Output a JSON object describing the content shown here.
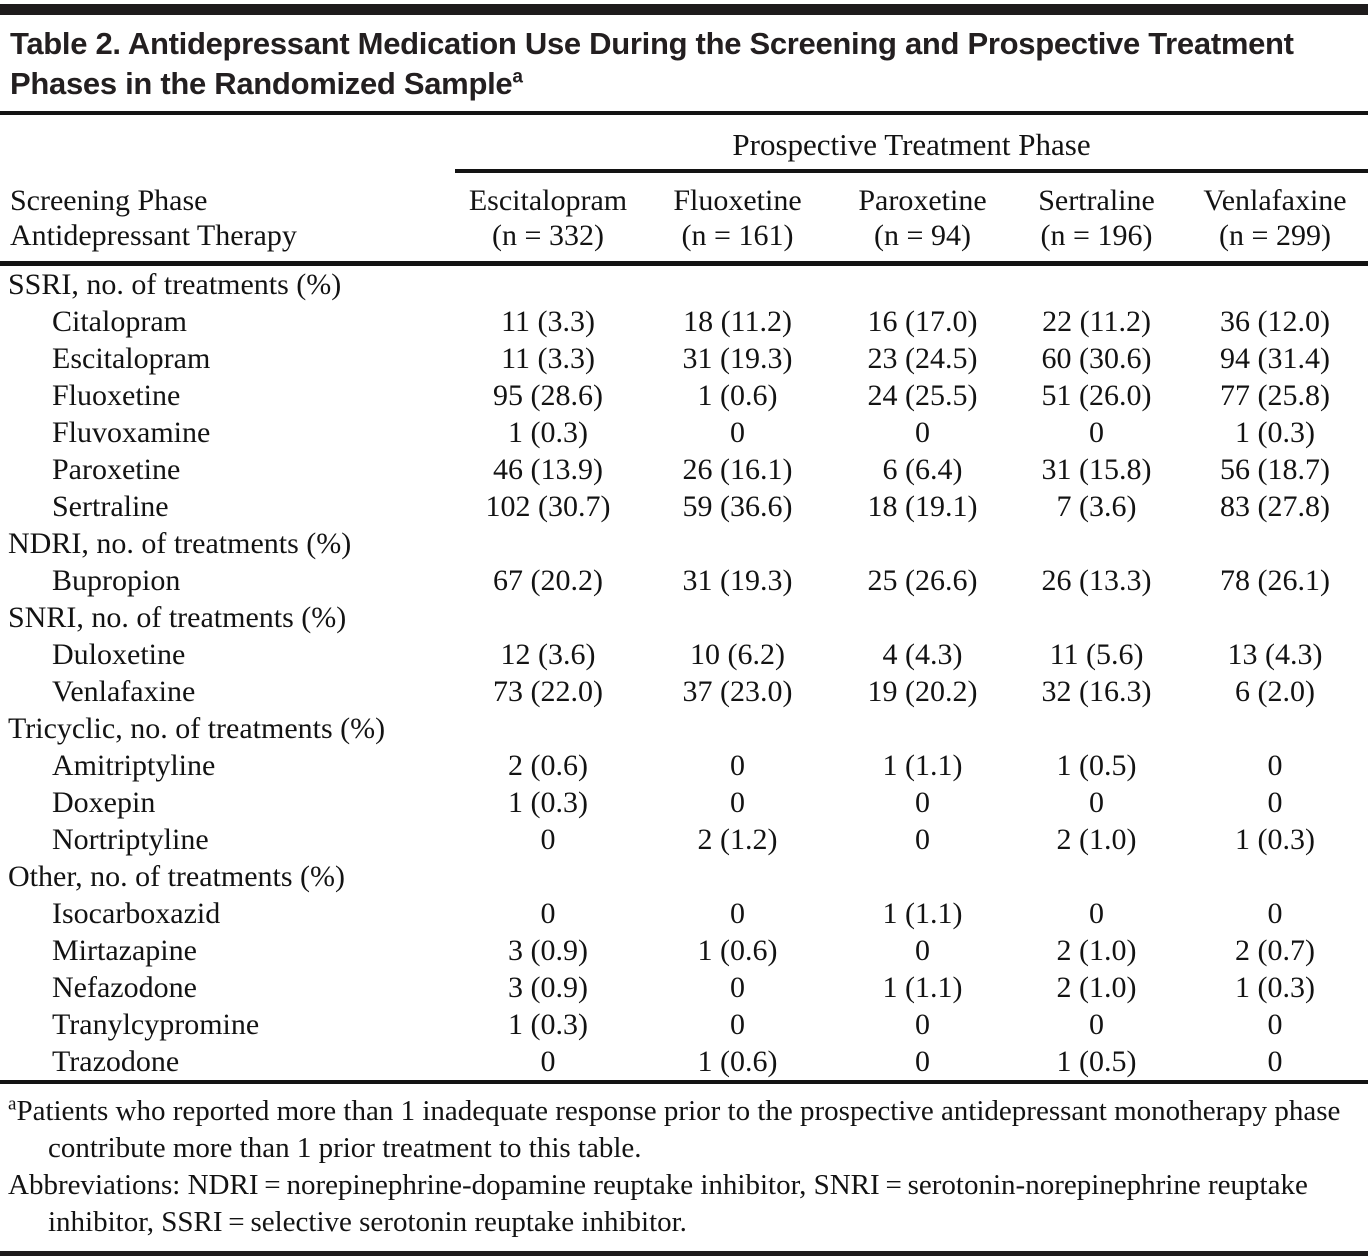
{
  "colors": {
    "background": "#ffffff",
    "text": "#131313",
    "rule": "#1e1b1c"
  },
  "title": {
    "text": "Table 2. Antidepressant Medication Use During the Screening and Prospective Treatment Phases in the Randomized Sample",
    "superscript": "a"
  },
  "table": {
    "spanner": "Prospective Treatment Phase",
    "stub_header_line1": "Screening Phase",
    "stub_header_line2": "Antidepressant Therapy",
    "columns": [
      {
        "name": "Escitalopram",
        "n": "(n = 332)"
      },
      {
        "name": "Fluoxetine",
        "n": "(n = 161)"
      },
      {
        "name": "Paroxetine",
        "n": "(n = 94)"
      },
      {
        "name": "Sertraline",
        "n": "(n = 196)"
      },
      {
        "name": "Venlafaxine",
        "n": "(n = 299)"
      }
    ],
    "rows": [
      {
        "type": "section",
        "label": "SSRI, no. of treatments (%)"
      },
      {
        "type": "drug",
        "label": "Citalopram",
        "values": [
          "11 (3.3)",
          "18 (11.2)",
          "16 (17.0)",
          "22 (11.2)",
          "36 (12.0)"
        ]
      },
      {
        "type": "drug",
        "label": "Escitalopram",
        "values": [
          "11 (3.3)",
          "31 (19.3)",
          "23 (24.5)",
          "60 (30.6)",
          "94 (31.4)"
        ]
      },
      {
        "type": "drug",
        "label": "Fluoxetine",
        "values": [
          "95 (28.6)",
          "1 (0.6)",
          "24 (25.5)",
          "51 (26.0)",
          "77 (25.8)"
        ]
      },
      {
        "type": "drug",
        "label": "Fluvoxamine",
        "values": [
          "1 (0.3)",
          "0",
          "0",
          "0",
          "1 (0.3)"
        ]
      },
      {
        "type": "drug",
        "label": "Paroxetine",
        "values": [
          "46 (13.9)",
          "26 (16.1)",
          "6 (6.4)",
          "31 (15.8)",
          "56 (18.7)"
        ]
      },
      {
        "type": "drug",
        "label": "Sertraline",
        "values": [
          "102 (30.7)",
          "59 (36.6)",
          "18 (19.1)",
          "7 (3.6)",
          "83 (27.8)"
        ]
      },
      {
        "type": "section",
        "label": "NDRI, no. of treatments (%)"
      },
      {
        "type": "drug",
        "label": "Bupropion",
        "values": [
          "67 (20.2)",
          "31 (19.3)",
          "25 (26.6)",
          "26 (13.3)",
          "78 (26.1)"
        ]
      },
      {
        "type": "section",
        "label": "SNRI, no. of treatments (%)"
      },
      {
        "type": "drug",
        "label": "Duloxetine",
        "values": [
          "12 (3.6)",
          "10 (6.2)",
          "4 (4.3)",
          "11 (5.6)",
          "13 (4.3)"
        ]
      },
      {
        "type": "drug",
        "label": "Venlafaxine",
        "values": [
          "73 (22.0)",
          "37 (23.0)",
          "19 (20.2)",
          "32 (16.3)",
          "6 (2.0)"
        ]
      },
      {
        "type": "section",
        "label": "Tricyclic, no. of treatments (%)"
      },
      {
        "type": "drug",
        "label": "Amitriptyline",
        "values": [
          "2 (0.6)",
          "0",
          "1 (1.1)",
          "1 (0.5)",
          "0"
        ]
      },
      {
        "type": "drug",
        "label": "Doxepin",
        "values": [
          "1 (0.3)",
          "0",
          "0",
          "0",
          "0"
        ]
      },
      {
        "type": "drug",
        "label": "Nortriptyline",
        "values": [
          "0",
          "2 (1.2)",
          "0",
          "2 (1.0)",
          "1 (0.3)"
        ]
      },
      {
        "type": "section",
        "label": "Other, no. of treatments (%)"
      },
      {
        "type": "drug",
        "label": "Isocarboxazid",
        "values": [
          "0",
          "0",
          "1 (1.1)",
          "0",
          "0"
        ]
      },
      {
        "type": "drug",
        "label": "Mirtazapine",
        "values": [
          "3 (0.9)",
          "1 (0.6)",
          "0",
          "2 (1.0)",
          "2 (0.7)"
        ]
      },
      {
        "type": "drug",
        "label": "Nefazodone",
        "values": [
          "3 (0.9)",
          "0",
          "1 (1.1)",
          "2 (1.0)",
          "1 (0.3)"
        ]
      },
      {
        "type": "drug",
        "label": "Tranylcypromine",
        "values": [
          "1 (0.3)",
          "0",
          "0",
          "0",
          "0"
        ]
      },
      {
        "type": "drug",
        "label": "Trazodone",
        "values": [
          "0",
          "1 (0.6)",
          "0",
          "1 (0.5)",
          "0"
        ]
      }
    ]
  },
  "footnotes": {
    "a_marker": "a",
    "a_text": "Patients who reported more than 1 inadequate response prior to the prospective antidepressant monotherapy phase contribute more than 1 prior treatment to this table.",
    "abbreviations": "Abbreviations: NDRI = norepinephrine-dopamine reuptake inhibitor, SNRI = serotonin-norepinephrine reuptake inhibitor, SSRI = selective serotonin reuptake inhibitor."
  }
}
